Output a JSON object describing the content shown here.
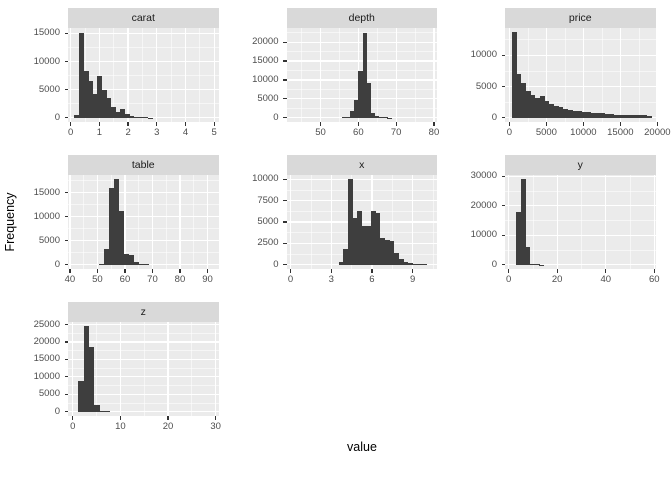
{
  "figure": {
    "x_axis_title": "value",
    "y_axis_title": "Frequency",
    "colors": {
      "bar_fill": "#3e3e3e",
      "panel_background": "#ebebeb",
      "strip_background": "#d9d9d9",
      "grid_line": "#ffffff",
      "axis_text": "#4d4d4d",
      "strip_text": "#1a1a1a"
    }
  },
  "chart_data": {
    "type": "bar",
    "subtype": "faceted-histograms",
    "xlabel": "value",
    "ylabel": "Frequency",
    "grid": "on",
    "legend": "none",
    "facets": [
      {
        "title": "carat",
        "x_ticks": [
          0,
          1,
          2,
          3,
          4,
          5
        ],
        "y_ticks": [
          0,
          5000,
          10000,
          15000
        ],
        "x_domain": [
          -0.094,
          5.15
        ],
        "y_domain": [
          -760,
          15960
        ],
        "bin_start": 0.13,
        "bin_width": 0.16,
        "counts": [
          500,
          15100,
          8400,
          6500,
          4300,
          7400,
          4900,
          3600,
          1900,
          1000,
          1600,
          600,
          300,
          200,
          100,
          60,
          40,
          25,
          15,
          10,
          8,
          6,
          5,
          4,
          3,
          3,
          2,
          2,
          2,
          1
        ]
      },
      {
        "title": "depth",
        "x_ticks": [
          50,
          60,
          70,
          80
        ],
        "y_ticks": [
          0,
          5000,
          10000,
          15000,
          20000
        ],
        "x_domain": [
          41,
          80.8
        ],
        "y_domain": [
          -1130,
          23730
        ],
        "bin_start": 55.6,
        "bin_width": 1.1,
        "counts": [
          150,
          300,
          1700,
          4800,
          12300,
          22300,
          9100,
          1200,
          500,
          250,
          120,
          60
        ]
      },
      {
        "title": "price",
        "x_ticks": [
          0,
          5000,
          10000,
          15000,
          20000
        ],
        "y_ticks": [
          0,
          5000,
          10000
        ],
        "x_domain": [
          -600,
          19750
        ],
        "y_domain": [
          -685,
          14385
        ],
        "bin_start": 300,
        "bin_width": 630,
        "counts": [
          13700,
          7000,
          5600,
          4300,
          3700,
          3200,
          3500,
          2700,
          2200,
          1850,
          1650,
          1400,
          1250,
          1150,
          1050,
          950,
          850,
          800,
          750,
          700,
          620,
          570,
          520,
          510,
          470,
          460,
          420,
          410,
          370,
          320
        ]
      },
      {
        "title": "table",
        "x_ticks": [
          40,
          50,
          60,
          70,
          80,
          90
        ],
        "y_ticks": [
          0,
          5000,
          10000,
          15000
        ],
        "x_domain": [
          39.3,
          94
        ],
        "y_domain": [
          -890,
          18690
        ],
        "bin_start": 50.5,
        "bin_width": 1.8,
        "counts": [
          200,
          3200,
          15900,
          17800,
          11100,
          2300,
          2000,
          600,
          250,
          120
        ]
      },
      {
        "title": "x",
        "x_ticks": [
          0,
          3,
          6,
          9
        ],
        "y_ticks": [
          0,
          2500,
          5000,
          7500,
          10000
        ],
        "x_domain": [
          -0.3,
          10.8
        ],
        "y_domain": [
          -500,
          10500
        ],
        "bin_start": 3.55,
        "bin_width": 0.34,
        "counts": [
          300,
          1800,
          10000,
          5500,
          6300,
          4500,
          4500,
          6300,
          6100,
          3100,
          2900,
          2800,
          1400,
          700,
          300,
          150,
          100,
          60,
          30
        ]
      },
      {
        "title": "y",
        "x_ticks": [
          0,
          20,
          40,
          60
        ],
        "y_ticks": [
          0,
          10000,
          20000,
          30000
        ],
        "x_domain": [
          -1.5,
          60.5
        ],
        "y_domain": [
          -1450,
          30450
        ],
        "bin_start": 3.1,
        "bin_width": 1.9,
        "counts": [
          18000,
          29000,
          6000,
          400,
          150,
          80
        ]
      },
      {
        "title": "z",
        "x_ticks": [
          0,
          10,
          20,
          30
        ],
        "y_ticks": [
          0,
          5000,
          10000,
          15000,
          20000,
          25000
        ],
        "x_domain": [
          -1,
          30.6
        ],
        "y_domain": [
          -1225,
          25725
        ],
        "bin_start": 1.2,
        "bin_width": 1.1,
        "counts": [
          8800,
          24500,
          18500,
          1800,
          250,
          100
        ]
      }
    ]
  }
}
